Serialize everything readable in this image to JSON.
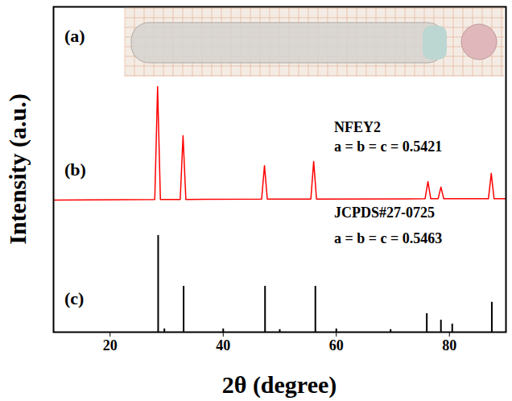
{
  "chart_data": {
    "type": "line",
    "x_label": "2θ (degree)",
    "y_label": "Intensity (a.u.)",
    "xlim": [
      10,
      90
    ],
    "xticks": [
      20,
      40,
      60,
      80
    ],
    "ylim": [
      0,
      100
    ],
    "yticks": [],
    "tick_labels": "x",
    "grid": false,
    "annotations": [
      "(a)",
      "(b)",
      "(c)",
      "a = b = c = 0.5421",
      "a = b = c = 0.5463"
    ],
    "series": [
      {
        "name": "NFEY2",
        "type": "line",
        "color": "#ff0000",
        "x": [
          10,
          27.9,
          28.4,
          28.9,
          32.4,
          32.9,
          33.4,
          46.8,
          47.3,
          47.8,
          55.5,
          56.0,
          56.5,
          75.7,
          76.2,
          76.7,
          78.0,
          78.5,
          79.0,
          86.9,
          87.4,
          87.9,
          90
        ],
        "values": [
          40.6,
          40.8,
          75.5,
          40.8,
          40.8,
          60.4,
          40.8,
          40.9,
          51.2,
          40.9,
          40.9,
          52.5,
          40.9,
          41.0,
          46.3,
          41.0,
          41.0,
          44.6,
          41.0,
          41.0,
          48.8,
          41.0,
          41.0
        ]
      },
      {
        "name": "JCPDS#27-0725",
        "type": "bar",
        "color": "#000000",
        "x": [
          28.5,
          29.6,
          33.0,
          40.0,
          47.4,
          50.0,
          56.3,
          60.0,
          69.6,
          76.0,
          78.5,
          80.5,
          87.5
        ],
        "values": [
          29.7,
          1.0,
          14.1,
          1.0,
          14.1,
          0.8,
          14.1,
          1.0,
          0.8,
          5.7,
          3.7,
          2.5,
          9.2
        ]
      }
    ]
  }
}
